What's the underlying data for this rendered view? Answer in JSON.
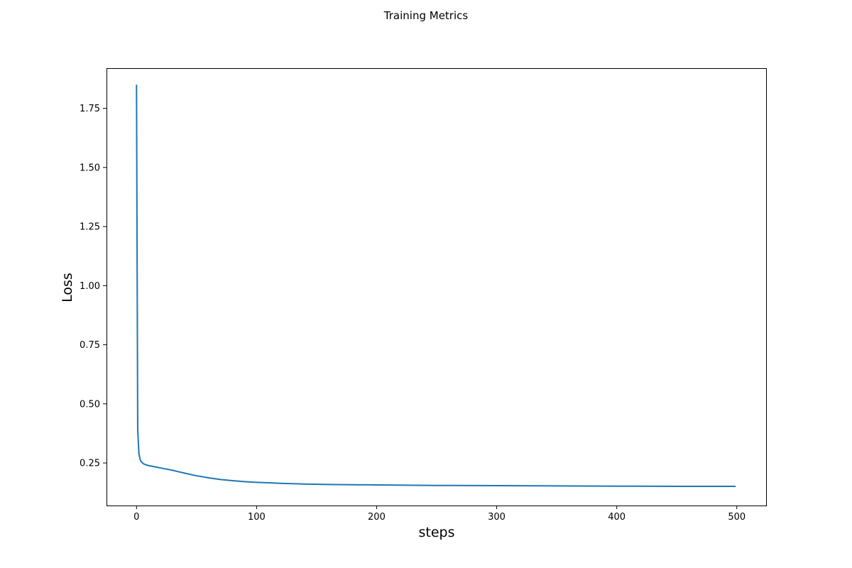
{
  "chart_data": {
    "type": "line",
    "title": "Training Metrics",
    "xlabel": "steps",
    "ylabel": "Loss",
    "xlim": [
      -25,
      525
    ],
    "ylim": [
      0.07,
      1.92
    ],
    "xticks": [
      0,
      100,
      200,
      300,
      400,
      500
    ],
    "xtick_labels": [
      "0",
      "100",
      "200",
      "300",
      "400",
      "500"
    ],
    "yticks": [
      0.25,
      0.5,
      0.75,
      1.0,
      1.25,
      1.5,
      1.75
    ],
    "ytick_labels": [
      "0.25",
      "0.50",
      "0.75",
      "1.00",
      "1.25",
      "1.50",
      "1.75"
    ],
    "grid": false,
    "colors": {
      "line": "#1f77b4",
      "axes": "#000000"
    },
    "series": [
      {
        "x": [
          0,
          1,
          2,
          3,
          4,
          5,
          6,
          8,
          10,
          15,
          20,
          30,
          40,
          50,
          60,
          70,
          80,
          90,
          100,
          120,
          140,
          160,
          180,
          200,
          250,
          300,
          350,
          400,
          450,
          499
        ],
        "values": [
          1.85,
          0.39,
          0.29,
          0.265,
          0.255,
          0.25,
          0.246,
          0.242,
          0.239,
          0.234,
          0.229,
          0.219,
          0.207,
          0.196,
          0.187,
          0.18,
          0.175,
          0.171,
          0.168,
          0.164,
          0.161,
          0.159,
          0.158,
          0.157,
          0.155,
          0.154,
          0.153,
          0.152,
          0.151,
          0.151
        ]
      }
    ]
  }
}
